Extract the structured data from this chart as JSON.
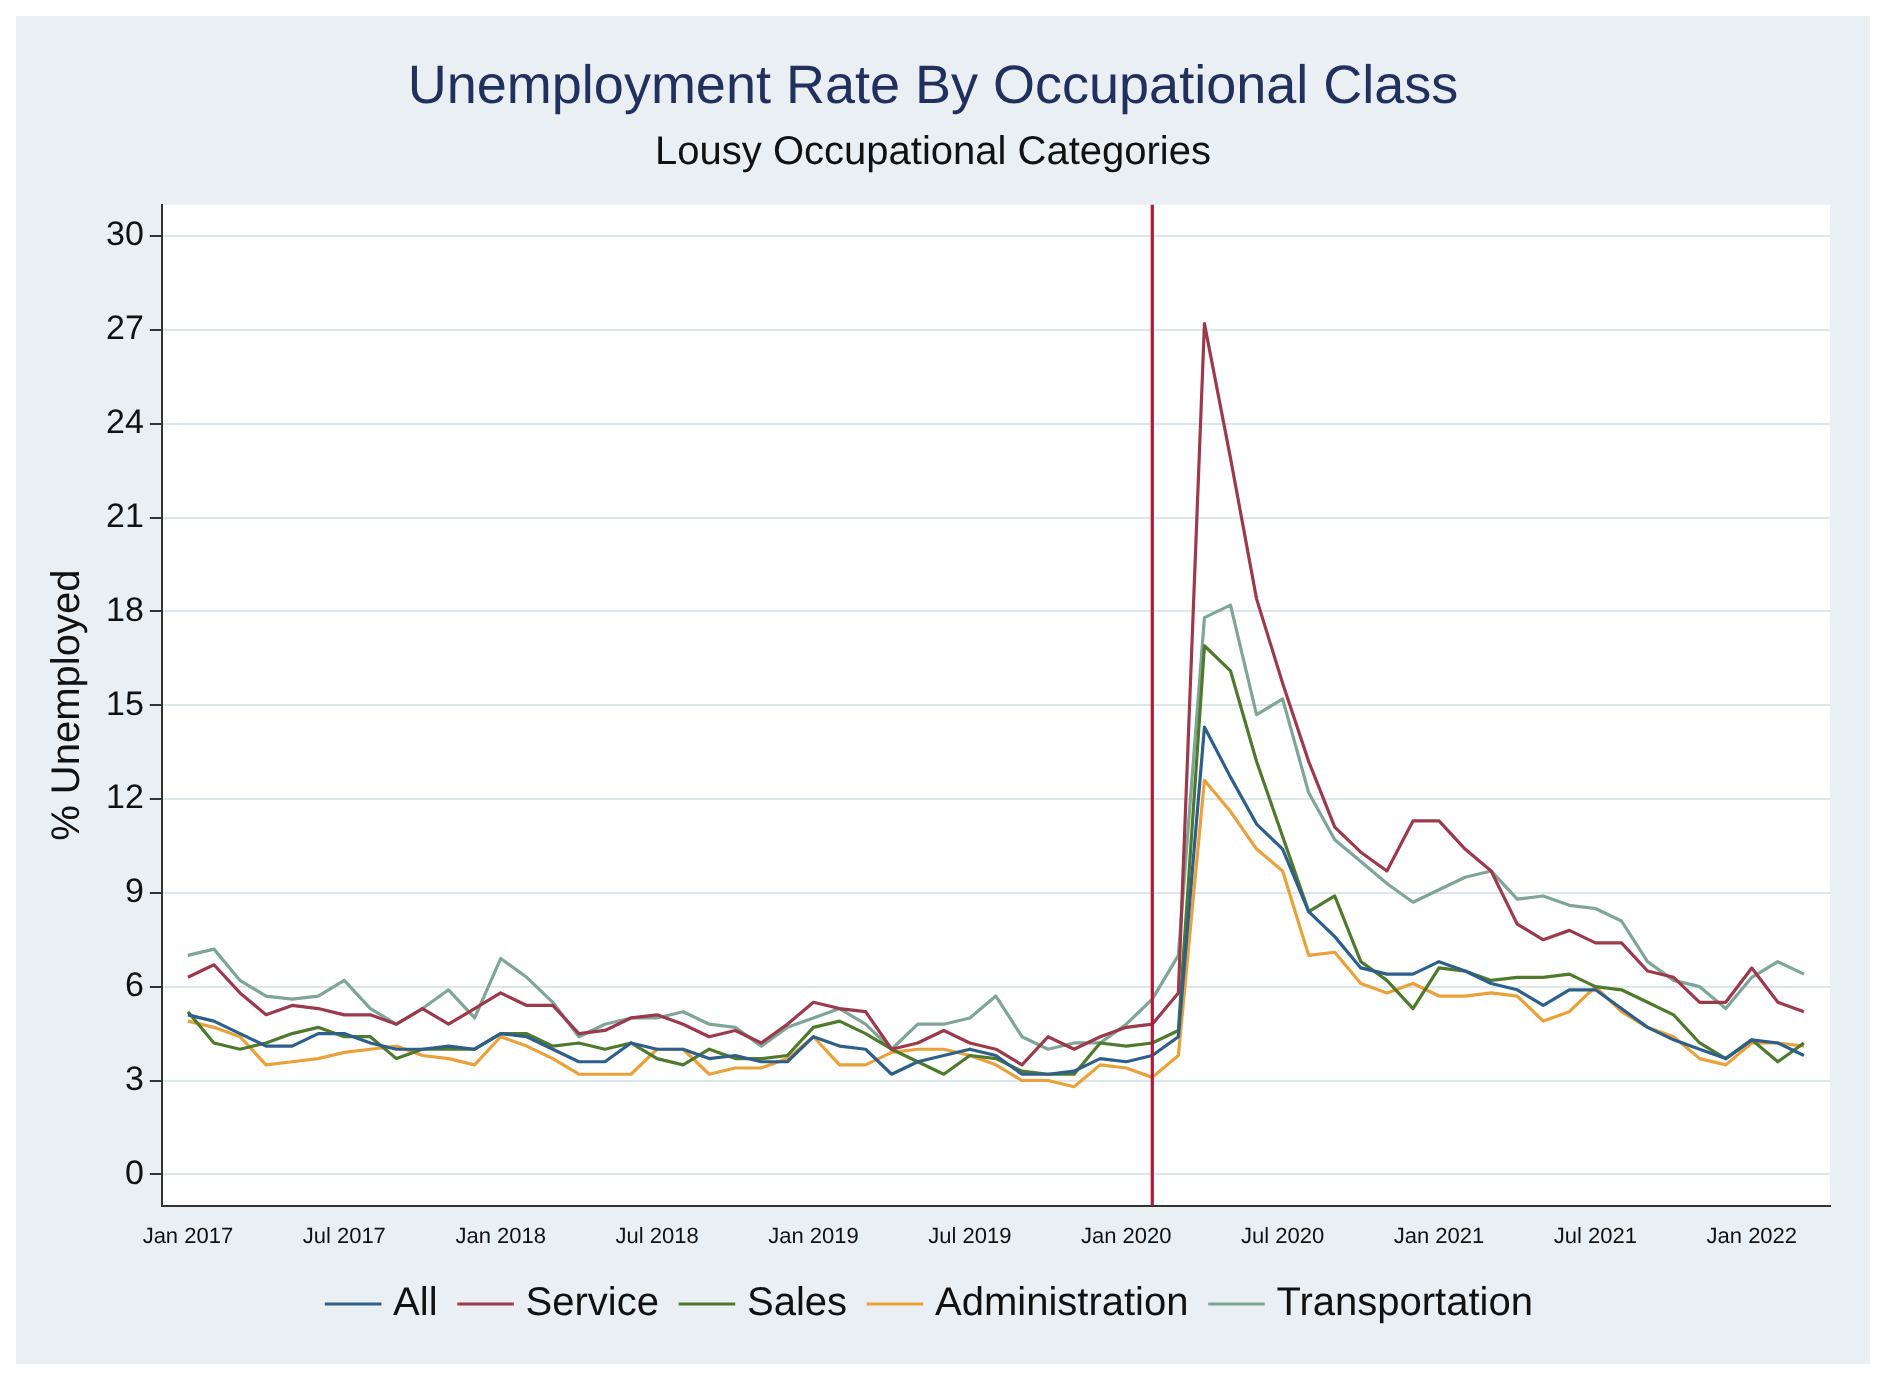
{
  "chart_data": {
    "type": "line",
    "title": "Unemployment Rate By Occupational Class",
    "subtitle": "Lousy Occupational Categories",
    "ylabel": "% Unemployed",
    "x": [
      "2017-01",
      "2017-02",
      "2017-03",
      "2017-04",
      "2017-05",
      "2017-06",
      "2017-07",
      "2017-08",
      "2017-09",
      "2017-10",
      "2017-11",
      "2017-12",
      "2018-01",
      "2018-02",
      "2018-03",
      "2018-04",
      "2018-05",
      "2018-06",
      "2018-07",
      "2018-08",
      "2018-09",
      "2018-10",
      "2018-11",
      "2018-12",
      "2019-01",
      "2019-02",
      "2019-03",
      "2019-04",
      "2019-05",
      "2019-06",
      "2019-07",
      "2019-08",
      "2019-09",
      "2019-10",
      "2019-11",
      "2019-12",
      "2020-01",
      "2020-02",
      "2020-03",
      "2020-04",
      "2020-05",
      "2020-06",
      "2020-07",
      "2020-08",
      "2020-09",
      "2020-10",
      "2020-11",
      "2020-12",
      "2021-01",
      "2021-02",
      "2021-03",
      "2021-04",
      "2021-05",
      "2021-06",
      "2021-07",
      "2021-08",
      "2021-09",
      "2021-10",
      "2021-11",
      "2021-12",
      "2022-01",
      "2022-02",
      "2022-03"
    ],
    "series": [
      {
        "name": "All",
        "color": "#2e5f8a",
        "values": [
          5.1,
          4.9,
          4.5,
          4.1,
          4.1,
          4.5,
          4.5,
          4.2,
          4.0,
          4.0,
          4.1,
          4.0,
          4.5,
          4.4,
          4.0,
          3.6,
          3.6,
          4.2,
          4.0,
          4.0,
          3.7,
          3.8,
          3.6,
          3.6,
          4.4,
          4.1,
          4.0,
          3.2,
          3.6,
          3.8,
          4.0,
          3.8,
          3.2,
          3.2,
          3.3,
          3.7,
          3.6,
          3.8,
          4.4,
          14.3,
          12.7,
          11.2,
          10.4,
          8.4,
          7.6,
          6.6,
          6.4,
          6.4,
          6.8,
          6.5,
          6.1,
          5.9,
          5.4,
          5.9,
          5.9,
          5.3,
          4.7,
          4.3,
          4.0,
          3.7,
          4.3,
          4.2,
          3.8
        ]
      },
      {
        "name": "Service",
        "color": "#9b3a4c",
        "values": [
          6.3,
          6.7,
          5.8,
          5.1,
          5.4,
          5.3,
          5.1,
          5.1,
          4.8,
          5.3,
          4.8,
          5.3,
          5.8,
          5.4,
          5.4,
          4.5,
          4.6,
          5.0,
          5.1,
          4.8,
          4.4,
          4.6,
          4.2,
          4.8,
          5.5,
          5.3,
          5.2,
          4.0,
          4.2,
          4.6,
          4.2,
          4.0,
          3.5,
          4.4,
          4.0,
          4.4,
          4.7,
          4.8,
          5.8,
          27.2,
          22.9,
          18.4,
          15.7,
          13.2,
          11.1,
          10.3,
          9.7,
          11.3,
          11.3,
          10.4,
          9.7,
          8.0,
          7.5,
          7.8,
          7.4,
          7.4,
          6.5,
          6.3,
          5.5,
          5.5,
          6.6,
          5.5,
          5.2
        ]
      },
      {
        "name": "Sales",
        "color": "#4f7a2e",
        "values": [
          5.2,
          4.2,
          4.0,
          4.2,
          4.5,
          4.7,
          4.4,
          4.4,
          3.7,
          4.0,
          4.0,
          4.0,
          4.5,
          4.5,
          4.1,
          4.2,
          4.0,
          4.2,
          3.7,
          3.5,
          4.0,
          3.7,
          3.7,
          3.8,
          4.7,
          4.9,
          4.5,
          4.0,
          3.6,
          3.2,
          3.8,
          3.7,
          3.3,
          3.2,
          3.2,
          4.2,
          4.1,
          4.2,
          4.6,
          16.9,
          16.1,
          13.2,
          10.8,
          8.4,
          8.9,
          6.8,
          6.2,
          5.3,
          6.6,
          6.5,
          6.2,
          6.3,
          6.3,
          6.4,
          6.0,
          5.9,
          5.5,
          5.1,
          4.2,
          3.7,
          4.3,
          3.6,
          4.2
        ]
      },
      {
        "name": "Administration",
        "color": "#e9a23b",
        "values": [
          4.9,
          4.7,
          4.4,
          3.5,
          3.6,
          3.7,
          3.9,
          4.0,
          4.1,
          3.8,
          3.7,
          3.5,
          4.4,
          4.1,
          3.7,
          3.2,
          3.2,
          3.2,
          4.0,
          4.0,
          3.2,
          3.4,
          3.4,
          3.7,
          4.4,
          3.5,
          3.5,
          3.9,
          4.0,
          4.0,
          3.8,
          3.5,
          3.0,
          3.0,
          2.8,
          3.5,
          3.4,
          3.1,
          3.8,
          12.6,
          11.6,
          10.4,
          9.7,
          7.0,
          7.1,
          6.1,
          5.8,
          6.1,
          5.7,
          5.7,
          5.8,
          5.7,
          4.9,
          5.2,
          6.0,
          5.2,
          4.7,
          4.4,
          3.7,
          3.5,
          4.2,
          4.2,
          4.1
        ]
      },
      {
        "name": "Transportation",
        "color": "#7fa596",
        "values": [
          7.0,
          7.2,
          6.2,
          5.7,
          5.6,
          5.7,
          6.2,
          5.3,
          4.8,
          5.3,
          5.9,
          5.0,
          6.9,
          6.3,
          5.5,
          4.4,
          4.8,
          5.0,
          5.0,
          5.2,
          4.8,
          4.7,
          4.1,
          4.7,
          5.0,
          5.3,
          4.8,
          4.0,
          4.8,
          4.8,
          5.0,
          5.7,
          4.4,
          4.0,
          4.2,
          4.2,
          4.8,
          5.6,
          7.0,
          17.8,
          18.2,
          14.7,
          15.2,
          12.2,
          10.7,
          10.0,
          9.3,
          8.7,
          9.1,
          9.5,
          9.7,
          8.8,
          8.9,
          8.6,
          8.5,
          8.1,
          6.8,
          6.2,
          6.0,
          5.3,
          6.3,
          6.8,
          6.4
        ]
      }
    ],
    "xlim": [
      "2016-12",
      "2022-04"
    ],
    "xticks": [
      {
        "value": "2017-01",
        "label": "Jan 2017"
      },
      {
        "value": "2017-07",
        "label": "Jul 2017"
      },
      {
        "value": "2018-01",
        "label": "Jan 2018"
      },
      {
        "value": "2018-07",
        "label": "Jul 2018"
      },
      {
        "value": "2019-01",
        "label": "Jan 2019"
      },
      {
        "value": "2019-07",
        "label": "Jul 2019"
      },
      {
        "value": "2020-01",
        "label": "Jan 2020"
      },
      {
        "value": "2020-07",
        "label": "Jul 2020"
      },
      {
        "value": "2021-01",
        "label": "Jan 2021"
      },
      {
        "value": "2021-07",
        "label": "Jul 2021"
      },
      {
        "value": "2022-01",
        "label": "Jan 2022"
      }
    ],
    "ylim": [
      -1,
      31
    ],
    "yticks": [
      0,
      3,
      6,
      9,
      12,
      15,
      18,
      21,
      24,
      27,
      30
    ],
    "ref_lines": [
      {
        "axis": "x",
        "value": "2020-02",
        "color": "#b0193a"
      }
    ],
    "grid": "y",
    "legend": "bottom",
    "marker": "none",
    "line_style": "solid"
  }
}
